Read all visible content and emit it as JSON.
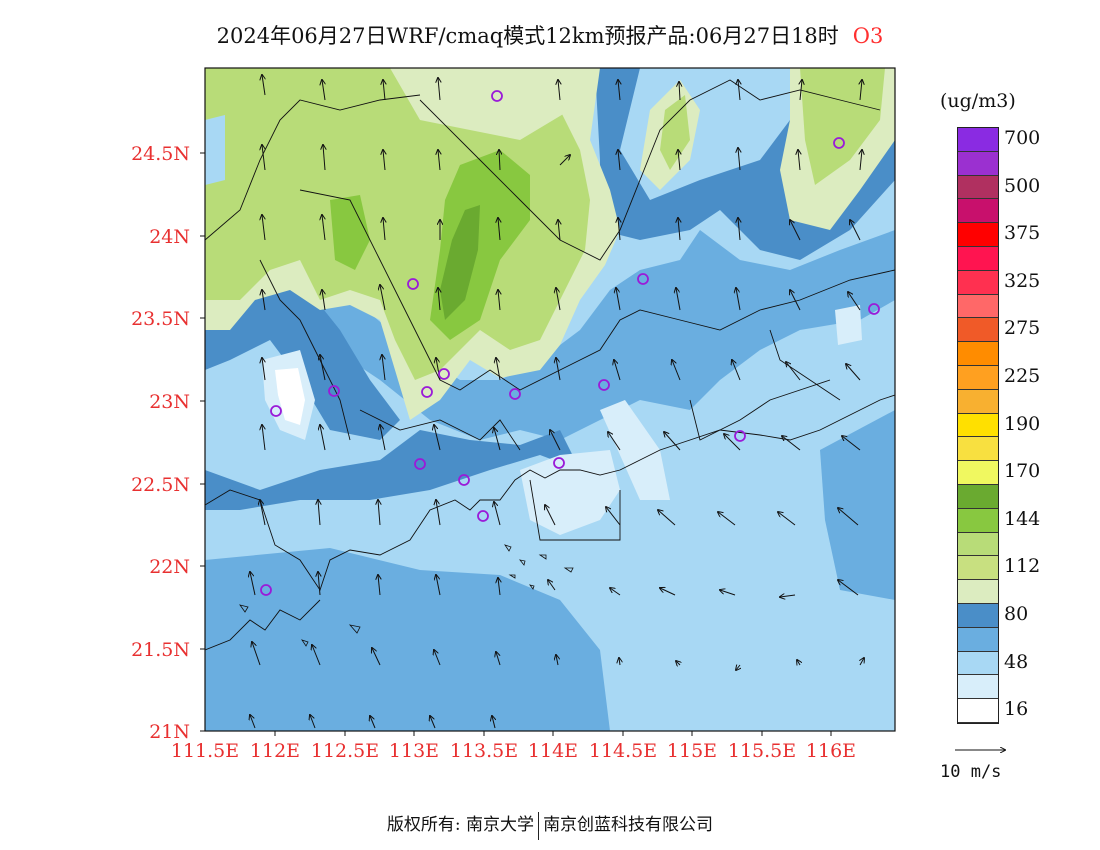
{
  "title": {
    "main": "2024年06月27日WRF/cmaq模式12km预报产品:06月27日18时",
    "species": "O3"
  },
  "axes": {
    "lat_ticks": [
      "24.5N",
      "24N",
      "23.5N",
      "23N",
      "22.5N",
      "22N",
      "21.5N",
      "21N"
    ],
    "lat_values": [
      24.5,
      24.0,
      23.5,
      23.0,
      22.5,
      22.0,
      21.5,
      21.0
    ],
    "lon_ticks": [
      "111.5E",
      "112E",
      "112.5E",
      "113E",
      "113.5E",
      "114E",
      "114.5E",
      "115E",
      "115.5E",
      "116E"
    ],
    "lon_values": [
      111.5,
      112.0,
      112.5,
      113.0,
      113.5,
      114.0,
      114.5,
      115.0,
      115.5,
      116.0
    ],
    "lon_range": [
      111.5,
      116.45
    ],
    "lat_range": [
      21.0,
      24.98
    ]
  },
  "legend": {
    "unit": "(ug/m3)",
    "colors": [
      "#8a2be2",
      "#9b30d0",
      "#b03060",
      "#c8106c",
      "#ff0000",
      "#ff1450",
      "#ff3050",
      "#ff6868",
      "#f05a28",
      "#ff8c00",
      "#ffa020",
      "#f8b030",
      "#ffe000",
      "#f8e040",
      "#f0f860",
      "#6aaa30",
      "#88c840",
      "#b8dc78",
      "#c8e080",
      "#dcecc0",
      "#4a8ec8",
      "#6aaee0",
      "#a8d8f4",
      "#d8eefa",
      "#ffffff"
    ],
    "labels": [
      "700",
      "500",
      "375",
      "325",
      "275",
      "225",
      "190",
      "170",
      "144",
      "112",
      "80",
      "48",
      "16"
    ],
    "label_rows": [
      0,
      2,
      4,
      6,
      8,
      10,
      12,
      14,
      16,
      18,
      20,
      22,
      24
    ]
  },
  "wind_reference": "10 m/s",
  "footer": {
    "left": "版权所有: 南京大学",
    "right": "南京创蓝科技有限公司"
  }
}
